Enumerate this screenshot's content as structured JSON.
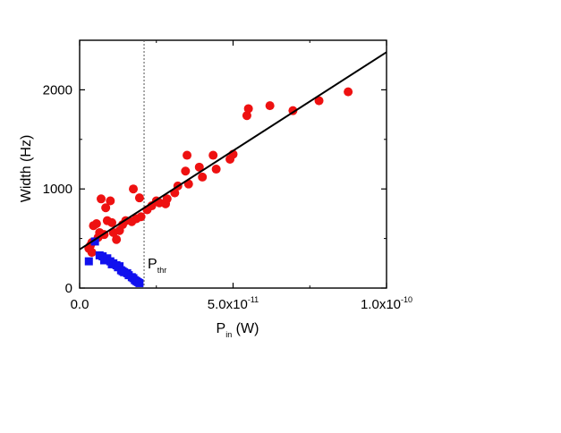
{
  "chart_data": {
    "type": "scatter",
    "xlabel": {
      "main": "P",
      "sub": "in",
      "unit": " (W)"
    },
    "ylabel": "Width (Hz)",
    "xlim": [
      0,
      1e-10
    ],
    "ylim": [
      0,
      2500
    ],
    "x_ticks": [
      {
        "value": 0,
        "base": "0.0",
        "exp": ""
      },
      {
        "value": 5e-11,
        "base": "5.0x10",
        "exp": "-11"
      },
      {
        "value": 1e-10,
        "base": "1.0x10",
        "exp": "-10"
      }
    ],
    "y_ticks": [
      {
        "value": 0,
        "label": "0"
      },
      {
        "value": 1000,
        "label": "1000"
      },
      {
        "value": 2000,
        "label": "2000"
      }
    ],
    "threshold": {
      "x": 2.1e-11,
      "main": "P",
      "sub": "thr"
    },
    "fit_line": {
      "x": [
        0,
        1e-10
      ],
      "y": [
        390,
        2380
      ]
    },
    "series": [
      {
        "marker": "circle",
        "color": "#ee1111",
        "points": [
          [
            3e-12,
            400
          ],
          [
            3.5e-12,
            430
          ],
          [
            4e-12,
            360
          ],
          [
            4e-12,
            460
          ],
          [
            4.5e-12,
            630
          ],
          [
            5.5e-12,
            650
          ],
          [
            6e-12,
            510
          ],
          [
            6.5e-12,
            560
          ],
          [
            7e-12,
            900
          ],
          [
            8e-12,
            540
          ],
          [
            8.5e-12,
            810
          ],
          [
            9e-12,
            680
          ],
          [
            1e-11,
            880
          ],
          [
            1.05e-11,
            660
          ],
          [
            1.1e-11,
            560
          ],
          [
            1.2e-11,
            490
          ],
          [
            1.3e-11,
            580
          ],
          [
            1.4e-11,
            640
          ],
          [
            1.5e-11,
            680
          ],
          [
            1.7e-11,
            670
          ],
          [
            1.75e-11,
            1000
          ],
          [
            1.85e-11,
            700
          ],
          [
            1.95e-11,
            910
          ],
          [
            2e-11,
            720
          ],
          [
            2.2e-11,
            790
          ],
          [
            2.35e-11,
            830
          ],
          [
            2.5e-11,
            880
          ],
          [
            2.6e-11,
            860
          ],
          [
            2.8e-11,
            850
          ],
          [
            2.85e-11,
            900
          ],
          [
            3.1e-11,
            960
          ],
          [
            3.2e-11,
            1030
          ],
          [
            3.45e-11,
            1180
          ],
          [
            3.5e-11,
            1340
          ],
          [
            3.55e-11,
            1050
          ],
          [
            3.9e-11,
            1220
          ],
          [
            4e-11,
            1120
          ],
          [
            4.35e-11,
            1340
          ],
          [
            4.45e-11,
            1200
          ],
          [
            4.9e-11,
            1300
          ],
          [
            5e-11,
            1350
          ],
          [
            5.45e-11,
            1740
          ],
          [
            5.5e-11,
            1810
          ],
          [
            6.2e-11,
            1840
          ],
          [
            6.95e-11,
            1790
          ],
          [
            7.8e-11,
            1890
          ],
          [
            8.75e-11,
            1980
          ]
        ]
      },
      {
        "marker": "square",
        "color": "#1111ee",
        "points": [
          [
            3e-12,
            270
          ],
          [
            5e-12,
            470
          ],
          [
            6.5e-12,
            330
          ],
          [
            7.5e-12,
            320
          ],
          [
            8e-12,
            280
          ],
          [
            9e-12,
            300
          ],
          [
            1e-11,
            270
          ],
          [
            1.05e-11,
            240
          ],
          [
            1.1e-11,
            250
          ],
          [
            1.2e-11,
            230
          ],
          [
            1.25e-11,
            210
          ],
          [
            1.3e-11,
            220
          ],
          [
            1.35e-11,
            180
          ],
          [
            1.4e-11,
            170
          ],
          [
            1.45e-11,
            160
          ],
          [
            1.55e-11,
            150
          ],
          [
            1.6e-11,
            130
          ],
          [
            1.7e-11,
            110
          ],
          [
            1.75e-11,
            100
          ],
          [
            1.8e-11,
            80
          ],
          [
            1.85e-11,
            70
          ],
          [
            1.9e-11,
            60
          ],
          [
            1.95e-11,
            50
          ]
        ]
      }
    ]
  }
}
